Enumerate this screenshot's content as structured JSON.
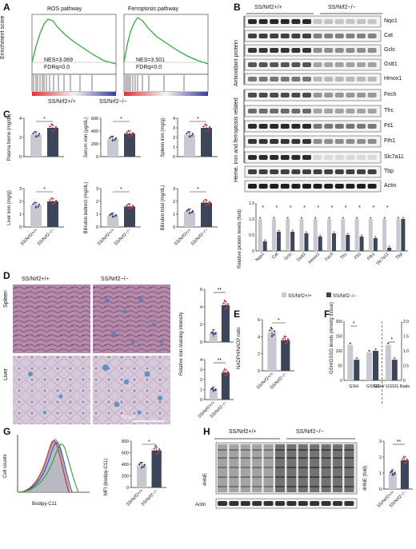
{
  "colors": {
    "wt": "#c8c8d0",
    "ko": "#3c465a",
    "red": "#d7333a",
    "blue": "#3a3a8c",
    "gsea": "#33aa44"
  },
  "panels": {
    "A": "A",
    "B": "B",
    "C": "C",
    "D": "D",
    "E": "E",
    "F": "F",
    "G": "G",
    "H": "H"
  },
  "sig": {
    "one": "*",
    "two": "**"
  },
  "groups": {
    "wt": "SS/Nrf2+/+",
    "ko": "SS/Nrf2−/−"
  },
  "A": {
    "ylabel": "Enrichment score",
    "plots": [
      {
        "title": "ROS pathway",
        "nes": "NES=3.069",
        "fdr": "FDRq=0.0"
      },
      {
        "title": "Ferroptosis pathway",
        "nes": "NES=3.501",
        "fdr": "FDRq=0.0"
      }
    ]
  },
  "B": {
    "antioxidant_label": "Antioxidant protein",
    "heme_label": "Heme, iron and ferroptosis related",
    "proteins": [
      "Nqo1",
      "Cat",
      "Gclc",
      "Gstt1",
      "Hmox1",
      "Fech",
      "Tfrc",
      "Ftl1",
      "Fth1",
      "Slc7a11",
      "Tbp",
      "Actin"
    ],
    "ylabel": "Relative protein levels (fold)",
    "legend": [
      "SS/Nrf2+/+",
      "SS/Nrf2−/−"
    ]
  },
  "C": {
    "charts": [
      {
        "ylabel": "Plasma heme (mg/dL)",
        "ticks": [
          "0",
          "2",
          "4"
        ]
      },
      {
        "ylabel": "Serum iron (µg/dL)",
        "ticks": [
          "0",
          "200",
          "400",
          "600"
        ]
      },
      {
        "ylabel": "Spleen iron (mg/g)",
        "ticks": [
          "0",
          "1",
          "2",
          "3",
          "4"
        ]
      },
      {
        "ylabel": "Liver iron (mg/g)",
        "ticks": [
          "0",
          "1",
          "2",
          "3"
        ]
      },
      {
        "ylabel": "Bilirubin indirect (mg/dL)",
        "ticks": [
          "0",
          "1",
          "2",
          "3"
        ]
      },
      {
        "ylabel": "Bilirubin total (mg/dL)",
        "ticks": [
          "0",
          "1",
          "2",
          "3"
        ]
      }
    ]
  },
  "D": {
    "spleen": "Spleen",
    "liver": "Liver",
    "scale": "50 µm",
    "ylabel": "Relative iron staining intensity",
    "charts": [
      {
        "label": "Spleen",
        "ticks": [
          "0",
          "2",
          "4",
          "6"
        ]
      },
      {
        "label": "Liver",
        "ticks": [
          "0",
          "1",
          "2",
          "3",
          "4"
        ]
      }
    ]
  },
  "E": {
    "ylabel": "NADPH/NADP ratio",
    "ticks": [
      "0",
      "2",
      "4",
      "6"
    ]
  },
  "F": {
    "ylabel": "GSH/GSSG levels (nmol/g tissue)",
    "ticks_left": [
      "0",
      "50",
      "100",
      "150",
      "200"
    ],
    "ticks_right": [
      "0",
      "0.5",
      "1.0",
      "1.5",
      "2.0"
    ],
    "cats": [
      "GSH",
      "GSSG",
      "GSH/ GSSG Ratio"
    ]
  },
  "G": {
    "ylabel": "Cell counts",
    "xlabel": "Bodipy-C11",
    "mfi_ylabel": "MFI (bodipy-C11)",
    "ticks": [
      "0",
      "200",
      "400",
      "600",
      "800"
    ]
  },
  "H": {
    "blot_label": "4HNE",
    "actin": "Actin",
    "ylabel": "4HNE (fold)",
    "ticks": [
      "0",
      "1",
      "2",
      "3"
    ]
  },
  "chart_data": [
    {
      "type": "bar",
      "panel": "C",
      "ylabel": "Plasma heme (mg/dL)",
      "categories": [
        "SS/Nrf2+/+",
        "SS/Nrf2−/−"
      ],
      "values": [
        2.3,
        3.0
      ],
      "ylim": [
        0,
        4
      ]
    },
    {
      "type": "bar",
      "panel": "C",
      "ylabel": "Serum iron (µg/dL)",
      "categories": [
        "SS/Nrf2+/+",
        "SS/Nrf2−/−"
      ],
      "values": [
        280,
        360
      ],
      "ylim": [
        0,
        600
      ]
    },
    {
      "type": "bar",
      "panel": "C",
      "ylabel": "Spleen iron (mg/g)",
      "categories": [
        "SS/Nrf2+/+",
        "SS/Nrf2−/−"
      ],
      "values": [
        2.3,
        3.0
      ],
      "ylim": [
        0,
        4
      ]
    },
    {
      "type": "bar",
      "panel": "C",
      "ylabel": "Liver iron (mg/g)",
      "categories": [
        "SS/Nrf2+/+",
        "SS/Nrf2−/−"
      ],
      "values": [
        1.7,
        2.0
      ],
      "ylim": [
        0,
        3
      ]
    },
    {
      "type": "bar",
      "panel": "C",
      "ylabel": "Bilirubin indirect (mg/dL)",
      "categories": [
        "SS/Nrf2+/+",
        "SS/Nrf2−/−"
      ],
      "values": [
        0.9,
        1.6
      ],
      "ylim": [
        0,
        3
      ]
    },
    {
      "type": "bar",
      "panel": "C",
      "ylabel": "Bilirubin total (mg/dL)",
      "categories": [
        "SS/Nrf2+/+",
        "SS/Nrf2−/−"
      ],
      "values": [
        1.2,
        1.9
      ],
      "ylim": [
        0,
        3
      ]
    },
    {
      "type": "bar",
      "panel": "B",
      "ylabel": "Relative protein levels (fold)",
      "categories": [
        "Nqo1",
        "Cat",
        "Gclc",
        "Gstt1",
        "Hmox1",
        "Fech",
        "Tfrc",
        "Ftl1",
        "Fth1",
        "Slc7a11",
        "Tbp"
      ],
      "series": [
        {
          "name": "SS/Nrf2+/+",
          "values": [
            1,
            1,
            1,
            1,
            1,
            1,
            1,
            1,
            1,
            1,
            1
          ]
        },
        {
          "name": "SS/Nrf2−/−",
          "values": [
            0.3,
            0.6,
            0.6,
            0.55,
            0.45,
            0.55,
            0.5,
            0.45,
            0.4,
            0.1,
            1.0
          ]
        }
      ],
      "ylim": [
        0,
        1.5
      ]
    },
    {
      "type": "bar",
      "panel": "D",
      "ylabel": "Spleen",
      "categories": [
        "SS/Nrf2+/+",
        "SS/Nrf2−/−"
      ],
      "values": [
        1.0,
        4.2
      ],
      "ylim": [
        0,
        6
      ]
    },
    {
      "type": "bar",
      "panel": "D",
      "ylabel": "Liver",
      "categories": [
        "SS/Nrf2+/+",
        "SS/Nrf2−/−"
      ],
      "values": [
        1.0,
        2.7
      ],
      "ylim": [
        0,
        4
      ]
    },
    {
      "type": "bar",
      "panel": "E",
      "ylabel": "NADPH/NADP ratio",
      "categories": [
        "SS/Nrf2+/+",
        "SS/Nrf2−/−"
      ],
      "values": [
        4.5,
        3.6
      ],
      "ylim": [
        0,
        6
      ]
    },
    {
      "type": "bar",
      "panel": "F",
      "ylabel": "GSH/GSSG levels (nmol/g tissue)",
      "categories": [
        "GSH",
        "GSSG",
        "GSH/ GSSG Ratio"
      ],
      "series": [
        {
          "name": "SS/Nrf2+/+",
          "values": [
            120,
            95,
            1.2
          ]
        },
        {
          "name": "SS/Nrf2−/−",
          "values": [
            70,
            100,
            0.7
          ]
        }
      ],
      "ylim": [
        0,
        200
      ]
    },
    {
      "type": "bar",
      "panel": "G",
      "ylabel": "MFI (bodipy-C11)",
      "categories": [
        "SS/Nrf2+/+",
        "SS/Nrf2−/−"
      ],
      "values": [
        380,
        640
      ],
      "ylim": [
        0,
        800
      ]
    },
    {
      "type": "bar",
      "panel": "H",
      "ylabel": "4HNE (fold)",
      "categories": [
        "SS/Nrf2+/+",
        "SS/Nrf2−/−"
      ],
      "values": [
        1.0,
        1.8
      ],
      "ylim": [
        0,
        3
      ]
    }
  ]
}
